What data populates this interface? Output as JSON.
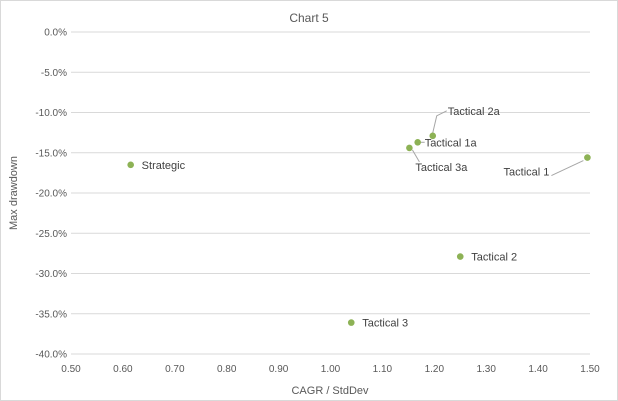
{
  "chart_data": {
    "type": "scatter",
    "title": "Chart 5",
    "xlabel": "CAGR / StdDev",
    "ylabel": "Max drawdown",
    "xlim": [
      0.5,
      1.5
    ],
    "ylim": [
      -0.4,
      0.0
    ],
    "grid": "horizontal",
    "legend": "none",
    "marker_color": "#8db255",
    "x_ticks": [
      "0.50",
      "0.60",
      "0.70",
      "0.80",
      "0.90",
      "1.00",
      "1.10",
      "1.20",
      "1.30",
      "1.40",
      "1.50"
    ],
    "y_ticks": [
      "0.0%",
      "-5.0%",
      "-10.0%",
      "-15.0%",
      "-20.0%",
      "-25.0%",
      "-30.0%",
      "-35.0%",
      "-40.0%"
    ],
    "points": [
      {
        "label": "Strategic",
        "x": 0.615,
        "y": -0.165
      },
      {
        "label": "Tactical 1",
        "x": 1.495,
        "y": -0.156
      },
      {
        "label": "Tactical 2",
        "x": 1.25,
        "y": -0.279
      },
      {
        "label": "Tactical 3",
        "x": 1.04,
        "y": -0.361
      },
      {
        "label": "Tactical 1a",
        "x": 1.168,
        "y": -0.137
      },
      {
        "label": "Tactical 2a",
        "x": 1.197,
        "y": -0.129
      },
      {
        "label": "Tactical 3a",
        "x": 1.152,
        "y": -0.144
      }
    ]
  }
}
